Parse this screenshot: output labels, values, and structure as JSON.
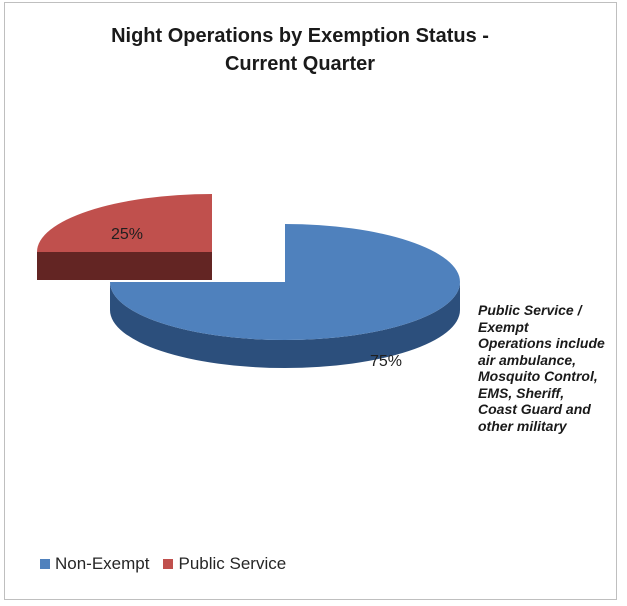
{
  "chart_data": {
    "type": "pie",
    "title": "Night Operations by Exemption Status - Current Quarter",
    "title_lines": [
      "Night Operations by Exemption Status -",
      "Current Quarter"
    ],
    "slices": [
      {
        "name": "Non-Exempt",
        "value": 75,
        "label": "75%",
        "color": "#4f81bd",
        "exploded": false
      },
      {
        "name": "Public Service",
        "value": 25,
        "label": "25%",
        "color": "#c0504d",
        "exploded": true
      }
    ],
    "legend_position": "bottom",
    "annotation": "Public Service / Exempt Operations include air ambulance, Mosquito Control, EMS, Sheriff, Coast Guard and other military",
    "style": "3d"
  },
  "colors": {
    "non_exempt_top": "#4f81bd",
    "non_exempt_side": "#2c4f7c",
    "public_service_top": "#c0504d",
    "public_service_side": "#632523"
  }
}
